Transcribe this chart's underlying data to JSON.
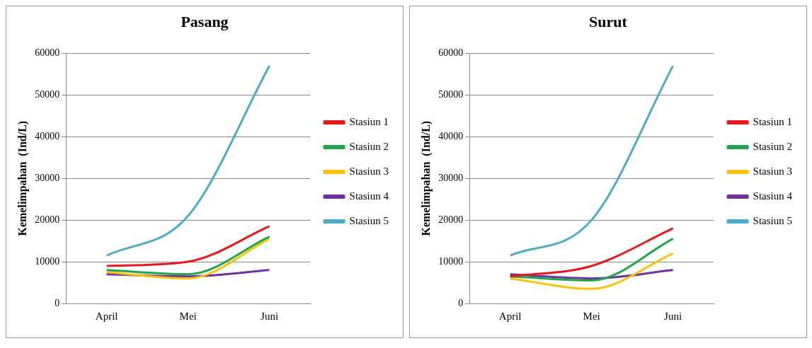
{
  "chart_data": [
    {
      "type": "line",
      "title": "Pasang",
      "ylabel": "Kemelimpahan  (Ind/L)",
      "categories": [
        "April",
        "Mei",
        "Juni"
      ],
      "ylim": [
        0,
        60000
      ],
      "yticks": [
        0,
        10000,
        20000,
        30000,
        40000,
        50000,
        60000
      ],
      "grid": "y",
      "legend": "right",
      "marker": "none",
      "series": [
        {
          "name": "Stasiun 1",
          "color": "#e8171c",
          "values": [
            9000,
            10000,
            18500
          ]
        },
        {
          "name": "Stasiun 2",
          "color": "#1fa64a",
          "values": [
            8000,
            7000,
            16000
          ]
        },
        {
          "name": "Stasiun 3",
          "color": "#fbc20a",
          "values": [
            7500,
            6000,
            15500
          ]
        },
        {
          "name": "Stasiun 4",
          "color": "#7030a0",
          "values": [
            7000,
            6500,
            8000
          ]
        },
        {
          "name": "Stasiun 5",
          "color": "#4bacc6",
          "values": [
            11500,
            21000,
            57000
          ]
        }
      ]
    },
    {
      "type": "line",
      "title": "Surut",
      "ylabel": "Kemelimpahan  (Ind/L)",
      "categories": [
        "April",
        "Mei",
        "Juni"
      ],
      "ylim": [
        0,
        60000
      ],
      "yticks": [
        0,
        10000,
        20000,
        30000,
        40000,
        50000,
        60000
      ],
      "grid": "y",
      "legend": "right",
      "marker": "none",
      "series": [
        {
          "name": "Stasiun 1",
          "color": "#e8171c",
          "values": [
            6500,
            9000,
            18000
          ]
        },
        {
          "name": "Stasiun 2",
          "color": "#1fa64a",
          "values": [
            6500,
            5500,
            15500
          ]
        },
        {
          "name": "Stasiun 3",
          "color": "#fbc20a",
          "values": [
            6000,
            3500,
            12000
          ]
        },
        {
          "name": "Stasiun 4",
          "color": "#7030a0",
          "values": [
            7000,
            6000,
            8000
          ]
        },
        {
          "name": "Stasiun 5",
          "color": "#4bacc6",
          "values": [
            11500,
            20000,
            57000
          ]
        }
      ]
    }
  ]
}
